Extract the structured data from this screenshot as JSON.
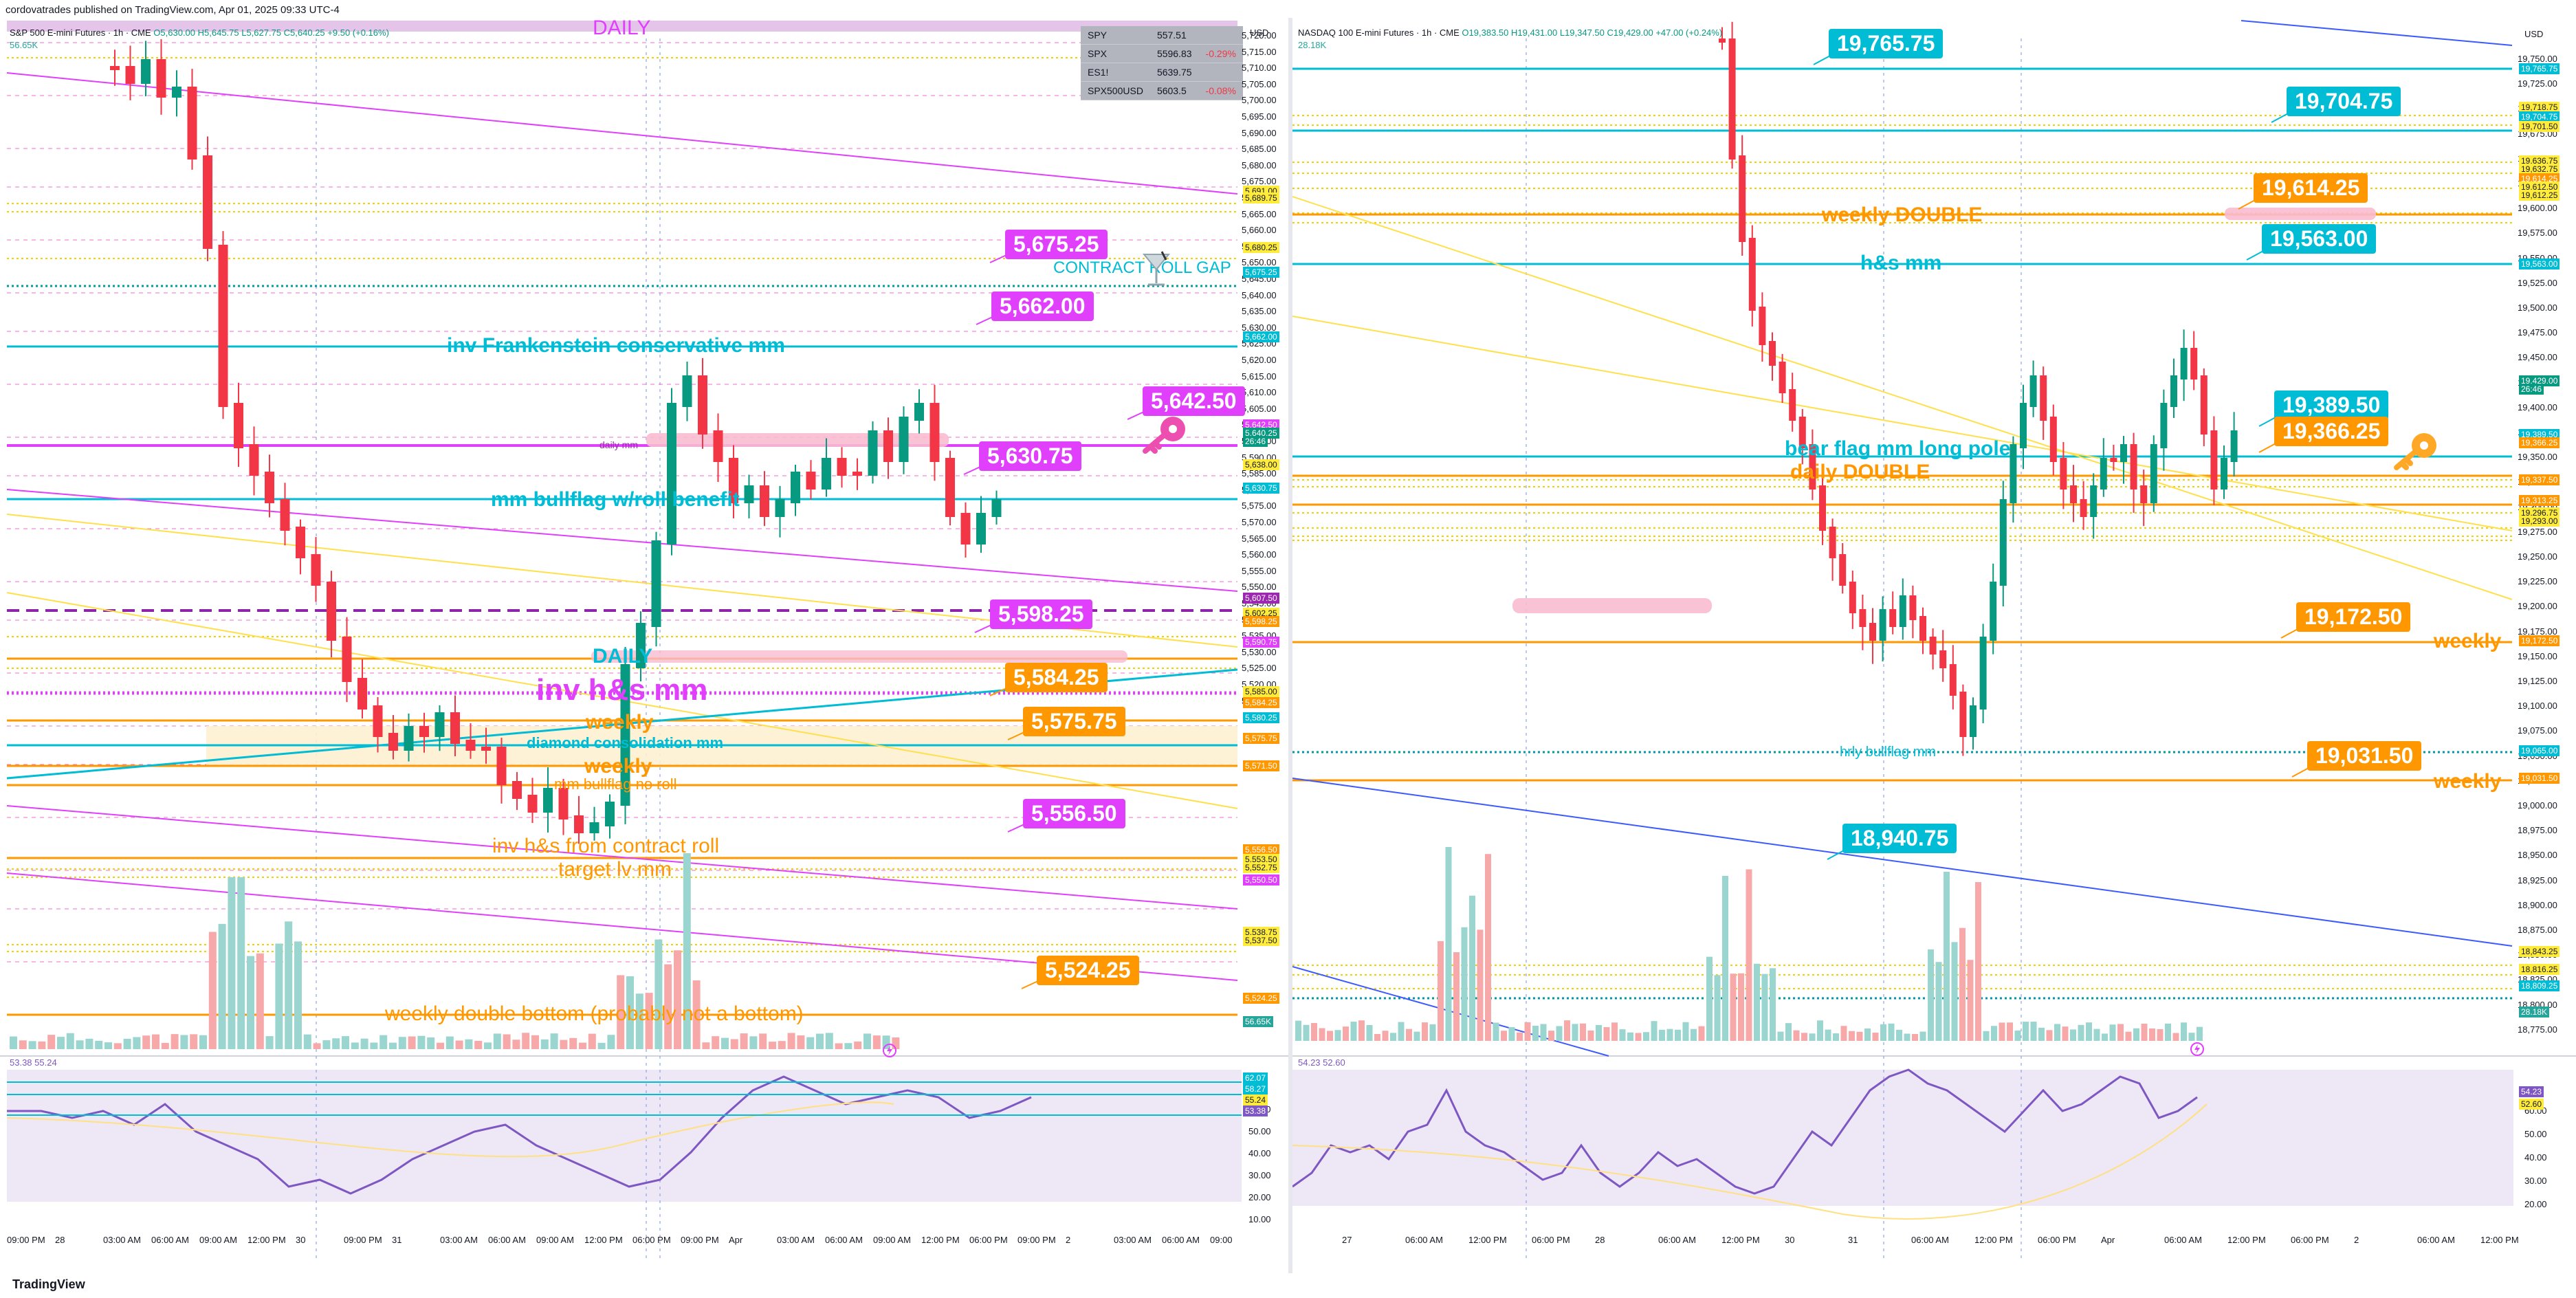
{
  "header_line": "cordovatrades published on TradingView.com, Apr 01, 2025 09:33 UTC-4",
  "footer_brand": "TradingView",
  "colors": {
    "magenta": "#e91e63",
    "pink": "#e040fb",
    "teal": "#00bcd4",
    "orange": "#ff9800",
    "yellow": "#ffeb3b",
    "blue": "#2962ff",
    "up": "#26a69a",
    "down": "#f23645",
    "rsi": "#7e57c2"
  },
  "left": {
    "symbol": "S&P 500 E-mini Futures · 1h · CME",
    "ohlc": "O5,630.00 H5,645.75 L5,627.75 C5,640.25 +9.50 (+0.16%)",
    "volume_label": "56.65K",
    "currency": "USD",
    "daily_label": "DAILY",
    "watchlist": [
      {
        "sym": "SPY",
        "price": "557.51",
        "chg": ""
      },
      {
        "sym": "SPX",
        "price": "5596.83",
        "chg": "-0.29%"
      },
      {
        "sym": "ES1!",
        "price": "5639.75",
        "chg": ""
      },
      {
        "sym": "SPX500USD",
        "price": "5603.5",
        "chg": "-0.08%"
      }
    ],
    "boxes": [
      {
        "text": "5,675.25",
        "color": "#e040fb"
      },
      {
        "text": "5,662.00",
        "color": "#e040fb"
      },
      {
        "text": "5,642.50",
        "color": "#e040fb"
      },
      {
        "text": "5,630.75",
        "color": "#e040fb"
      },
      {
        "text": "5,598.25",
        "color": "#e040fb"
      },
      {
        "text": "5,584.25",
        "color": "#ff9800"
      },
      {
        "text": "5,575.75",
        "color": "#ff9800"
      },
      {
        "text": "5,556.50",
        "color": "#e040fb"
      },
      {
        "text": "5,524.25",
        "color": "#ff9800"
      }
    ],
    "labels": {
      "contract_roll_gap": "CONTRACT ROLL GAP",
      "inv_frankenstein": "inv Frankenstein conservative mm",
      "daily_mm": "daily mm",
      "mm_bullflag_roll": "mm bullflag w/roll benefit",
      "daily2": "DAILY",
      "inv_hs_mm": "inv h&s mm",
      "weekly1": "weekly",
      "diamond": "diamond consolidation mm",
      "weekly2": "weekly",
      "mm_bullflag_no_roll": "mm bullflag no roll",
      "inv_hs_contract_roll": "inv h&s from contract roll",
      "target_lv_mm": "target lv mm",
      "weekly_double_bottom": "weekly double bottom (probably not a bottom)"
    },
    "price_scale": [
      "5,720.00",
      "5,715.00",
      "5,710.00",
      "5,705.00",
      "5,700.00",
      "5,695.00",
      "5,690.00",
      "5,685.00",
      "5,680.00",
      "5,675.00",
      "5,670.00",
      "5,665.00",
      "5,660.00",
      "5,655.00",
      "5,650.00",
      "5,645.00",
      "5,640.00",
      "5,635.00",
      "5,630.00",
      "5,625.00",
      "5,620.00",
      "5,615.00",
      "5,610.00",
      "5,605.00",
      "5,600.00",
      "5,595.00",
      "5,590.00",
      "5,585.00",
      "5,580.00",
      "5,575.00",
      "5,570.00",
      "5,565.00",
      "5,560.00",
      "5,555.00",
      "5,550.00",
      "5,545.00",
      "5,540.00",
      "5,535.00",
      "5,530.00",
      "5,525.00",
      "5,520.00",
      "5,515.00"
    ],
    "scale_tags": [
      {
        "text": "5,691.00",
        "bg": "#ffeb3b",
        "fg": "#131722"
      },
      {
        "text": "5,689.75",
        "bg": "#ffeb3b",
        "fg": "#131722"
      },
      {
        "text": "5,680.25",
        "bg": "#ffeb3b",
        "fg": "#131722"
      },
      {
        "text": "5,675.25",
        "bg": "#00bcd4",
        "fg": "#fff"
      },
      {
        "text": "5,662.00",
        "bg": "#00bcd4",
        "fg": "#fff"
      },
      {
        "text": "5,642.50",
        "bg": "#e040fb",
        "fg": "#fff"
      },
      {
        "text": "5,640.25",
        "bg": "#089981",
        "fg": "#fff"
      },
      {
        "text": "26:46",
        "bg": "#089981",
        "fg": "#fff"
      },
      {
        "text": "5,638.00",
        "bg": "#ffeb3b",
        "fg": "#131722"
      },
      {
        "text": "5,630.75",
        "bg": "#00bcd4",
        "fg": "#fff"
      },
      {
        "text": "5,607.50",
        "bg": "#9c27b0",
        "fg": "#fff"
      },
      {
        "text": "5,602.25",
        "bg": "#ffeb3b",
        "fg": "#131722"
      },
      {
        "text": "5,598.25",
        "bg": "#ff9800",
        "fg": "#fff"
      },
      {
        "text": "5,590.75",
        "bg": "#e040fb",
        "fg": "#fff"
      },
      {
        "text": "5,585.00",
        "bg": "#ffeb3b",
        "fg": "#131722"
      },
      {
        "text": "5,584.25",
        "bg": "#ff9800",
        "fg": "#fff"
      },
      {
        "text": "5,580.25",
        "bg": "#00bcd4",
        "fg": "#fff"
      },
      {
        "text": "5,575.75",
        "bg": "#ff9800",
        "fg": "#fff"
      },
      {
        "text": "5,571.50",
        "bg": "#ff9800",
        "fg": "#fff"
      },
      {
        "text": "5,556.50",
        "bg": "#ff9800",
        "fg": "#fff"
      },
      {
        "text": "5,553.50",
        "bg": "#ffeb3b",
        "fg": "#131722"
      },
      {
        "text": "5,552.75",
        "bg": "#ffeb3b",
        "fg": "#131722"
      },
      {
        "text": "5,550.50",
        "bg": "#e040fb",
        "fg": "#fff"
      },
      {
        "text": "5,538.75",
        "bg": "#ffeb3b",
        "fg": "#131722"
      },
      {
        "text": "5,537.50",
        "bg": "#ffeb3b",
        "fg": "#131722"
      },
      {
        "text": "5,524.25",
        "bg": "#ff9800",
        "fg": "#fff"
      },
      {
        "text": "56.65K",
        "bg": "#26a69a",
        "fg": "#fff"
      }
    ],
    "rsi_header": "53.38  55.24",
    "rsi_scale": [
      "60.00",
      "50.00",
      "40.00",
      "30.00",
      "20.00",
      "10.00"
    ],
    "rsi_tags": [
      {
        "text": "62.07",
        "bg": "#00bcd4",
        "fg": "#fff"
      },
      {
        "text": "58.27",
        "bg": "#00bcd4",
        "fg": "#fff"
      },
      {
        "text": "55.24",
        "bg": "#ffeb3b",
        "fg": "#131722"
      },
      {
        "text": "53.38",
        "bg": "#7e57c2",
        "fg": "#fff"
      }
    ],
    "time_axis": [
      "09:00 PM",
      "28",
      "03:00 AM",
      "06:00 AM",
      "09:00 AM",
      "12:00 PM",
      "30",
      "09:00 PM",
      "31",
      "03:00 AM",
      "06:00 AM",
      "09:00 AM",
      "12:00 PM",
      "06:00 PM",
      "09:00 PM",
      "Apr",
      "03:00 AM",
      "06:00 AM",
      "09:00 AM",
      "12:00 PM",
      "06:00 PM",
      "09:00 PM",
      "2",
      "03:00 AM",
      "06:00 AM",
      "09:00"
    ]
  },
  "right": {
    "symbol": "NASDAQ 100 E-mini Futures · 1h · CME",
    "ohlc": "O19,383.50 H19,431.00 L19,347.50 C19,429.00 +47.00 (+0.24%)",
    "volume_label": "28.18K",
    "currency": "USD",
    "boxes": [
      {
        "text": "19,765.75",
        "color": "#00bcd4"
      },
      {
        "text": "19,704.75",
        "color": "#00bcd4"
      },
      {
        "text": "19,614.25",
        "color": "#ff9800"
      },
      {
        "text": "19,563.00",
        "color": "#00bcd4"
      },
      {
        "text": "19,389.50",
        "color": "#00bcd4"
      },
      {
        "text": "19,366.25",
        "color": "#ff9800"
      },
      {
        "text": "19,172.50",
        "color": "#ff9800"
      },
      {
        "text": "19,031.50",
        "color": "#ff9800"
      },
      {
        "text": "18,940.75",
        "color": "#00bcd4"
      }
    ],
    "labels": {
      "weekly_double": "weekly DOUBLE",
      "hs_mm": "h&s mm",
      "bear_flag": "bear flag mm long pole",
      "daily_double": "daily DOUBLE",
      "weekly1": "weekly",
      "hrly_bullflag": "hrly bullflag mm",
      "weekly2": "weekly"
    },
    "price_scale": [
      "19,750.00",
      "19,725.00",
      "19,700.00",
      "19,675.00",
      "19,650.00",
      "19,625.00",
      "19,600.00",
      "19,575.00",
      "19,550.00",
      "19,525.00",
      "19,500.00",
      "19,475.00",
      "19,450.00",
      "19,425.00",
      "19,400.00",
      "19,375.00",
      "19,350.00",
      "19,325.00",
      "19,300.00",
      "19,275.00",
      "19,250.00",
      "19,225.00",
      "19,200.00",
      "19,175.00",
      "19,150.00",
      "19,125.00",
      "19,100.00",
      "19,075.00",
      "19,050.00",
      "19,025.00",
      "19,000.00",
      "18,975.00",
      "18,950.00",
      "18,925.00",
      "18,900.00",
      "18,875.00",
      "18,850.00",
      "18,825.00",
      "18,800.00",
      "18,775.00"
    ],
    "scale_tags": [
      {
        "text": "19,765.75",
        "bg": "#00bcd4",
        "fg": "#fff"
      },
      {
        "text": "19,718.75",
        "bg": "#ffeb3b",
        "fg": "#131722"
      },
      {
        "text": "19,704.75",
        "bg": "#00bcd4",
        "fg": "#fff"
      },
      {
        "text": "19,701.50",
        "bg": "#ffeb3b",
        "fg": "#131722"
      },
      {
        "text": "19,636.75",
        "bg": "#ffeb3b",
        "fg": "#131722"
      },
      {
        "text": "19,632.75",
        "bg": "#ffeb3b",
        "fg": "#131722"
      },
      {
        "text": "19,614.25",
        "bg": "#ff9800",
        "fg": "#fff"
      },
      {
        "text": "19,612.50",
        "bg": "#ffeb3b",
        "fg": "#131722"
      },
      {
        "text": "19,612.25",
        "bg": "#ffeb3b",
        "fg": "#131722"
      },
      {
        "text": "19,563.00",
        "bg": "#00bcd4",
        "fg": "#fff"
      },
      {
        "text": "19,429.00",
        "bg": "#089981",
        "fg": "#fff"
      },
      {
        "text": "26:46",
        "bg": "#089981",
        "fg": "#fff"
      },
      {
        "text": "19,389.50",
        "bg": "#00bcd4",
        "fg": "#fff"
      },
      {
        "text": "19,366.25",
        "bg": "#ff9800",
        "fg": "#fff"
      },
      {
        "text": "19,337.50",
        "bg": "#ff9800",
        "fg": "#fff"
      },
      {
        "text": "19,313.25",
        "bg": "#ff9800",
        "fg": "#fff"
      },
      {
        "text": "19,296.75",
        "bg": "#ffeb3b",
        "fg": "#131722"
      },
      {
        "text": "19,293.00",
        "bg": "#ffeb3b",
        "fg": "#131722"
      },
      {
        "text": "19,172.50",
        "bg": "#ff9800",
        "fg": "#fff"
      },
      {
        "text": "19,065.00",
        "bg": "#00bcd4",
        "fg": "#fff"
      },
      {
        "text": "19,031.50",
        "bg": "#ff9800",
        "fg": "#fff"
      },
      {
        "text": "18,843.25",
        "bg": "#ffeb3b",
        "fg": "#131722"
      },
      {
        "text": "18,816.25",
        "bg": "#ffeb3b",
        "fg": "#131722"
      },
      {
        "text": "18,809.25",
        "bg": "#00bcd4",
        "fg": "#fff"
      },
      {
        "text": "28.18K",
        "bg": "#26a69a",
        "fg": "#fff"
      }
    ],
    "rsi_header": "54.23  52.60",
    "rsi_scale": [
      "60.00",
      "50.00",
      "40.00",
      "30.00",
      "20.00"
    ],
    "rsi_tags": [
      {
        "text": "54.23",
        "bg": "#7e57c2",
        "fg": "#fff"
      },
      {
        "text": "52.60",
        "bg": "#ffeb3b",
        "fg": "#131722"
      }
    ],
    "time_axis": [
      "27",
      "06:00 AM",
      "12:00 PM",
      "06:00 PM",
      "28",
      "06:00 AM",
      "12:00 PM",
      "30",
      "31",
      "06:00 AM",
      "12:00 PM",
      "06:00 PM",
      "Apr",
      "06:00 AM",
      "12:00 PM",
      "06:00 PM",
      "2",
      "06:00 AM",
      "12:00 PM"
    ]
  }
}
